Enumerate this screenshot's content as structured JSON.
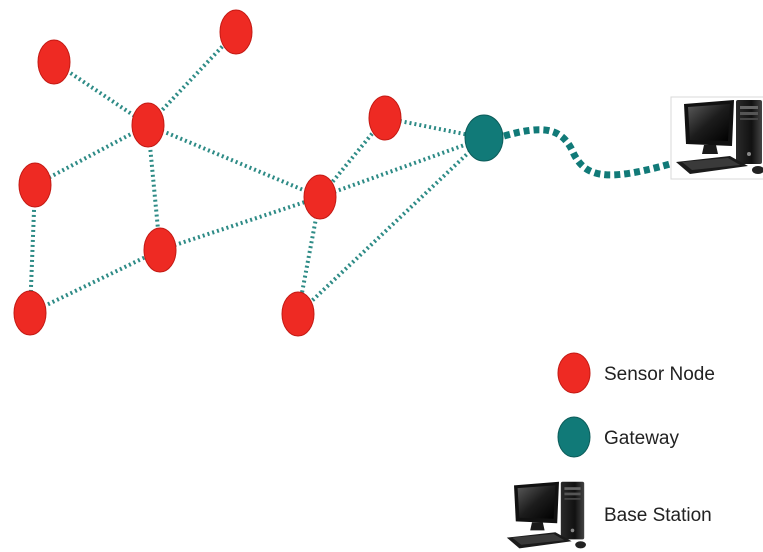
{
  "colors": {
    "sensor_node": "#ee2a23",
    "sensor_node_edge": "#c41a14",
    "gateway": "#117a78",
    "gateway_edge": "#0c5c5a",
    "link": "#2e8b86",
    "text": "#222222"
  },
  "icons": {
    "base_station": "desktop-computer-icon"
  },
  "legend": {
    "sensor_node_label": "Sensor Node",
    "gateway_label": "Gateway",
    "base_station_label": "Base Station"
  }
}
